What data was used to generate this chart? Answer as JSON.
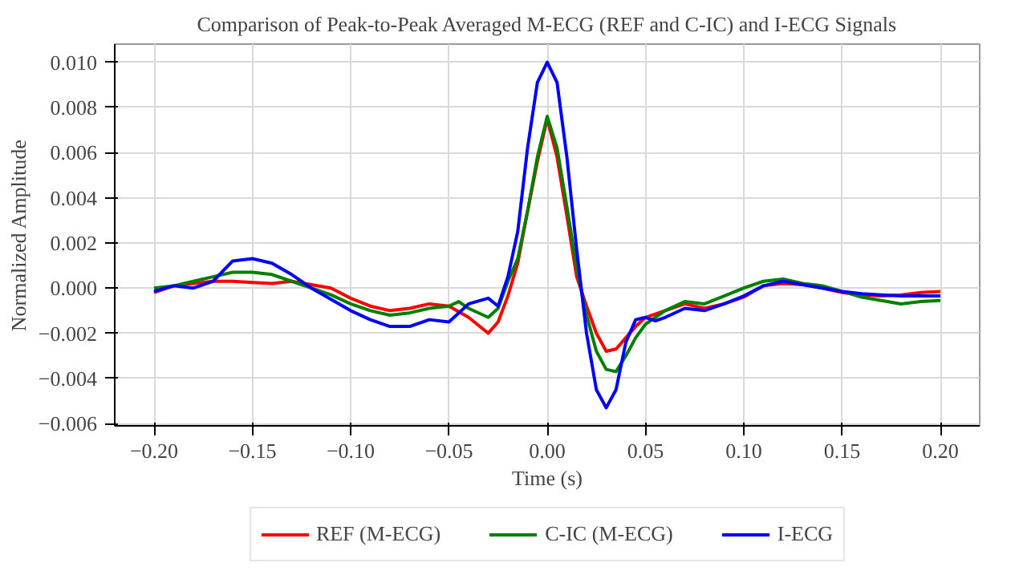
{
  "chart_data": {
    "type": "line",
    "title": "Comparison of Peak-to-Peak Averaged M-ECG (REF and C-IC) and I-ECG Signals",
    "xlabel": "Time (s)",
    "ylabel": "Normalized Amplitude",
    "xlim": [
      -0.22,
      0.22
    ],
    "ylim": [
      -0.0061,
      0.0108
    ],
    "xticks": [
      {
        "value": -0.2,
        "label": "−0.20"
      },
      {
        "value": -0.15,
        "label": "−0.15"
      },
      {
        "value": -0.1,
        "label": "−0.10"
      },
      {
        "value": -0.05,
        "label": "−0.05"
      },
      {
        "value": 0,
        "label": "0.00"
      },
      {
        "value": 0.05,
        "label": "0.05"
      },
      {
        "value": 0.1,
        "label": "0.10"
      },
      {
        "value": 0.15,
        "label": "0.15"
      },
      {
        "value": 0.2,
        "label": "0.20"
      }
    ],
    "yticks": [
      {
        "value": -0.006,
        "label": "−0.006"
      },
      {
        "value": -0.004,
        "label": "−0.004"
      },
      {
        "value": -0.002,
        "label": "−0.002"
      },
      {
        "value": 0,
        "label": "0.000"
      },
      {
        "value": 0.002,
        "label": "0.002"
      },
      {
        "value": 0.004,
        "label": "0.004"
      },
      {
        "value": 0.006,
        "label": "0.006"
      },
      {
        "value": 0.008,
        "label": "0.008"
      },
      {
        "value": 0.01,
        "label": "0.010"
      }
    ],
    "grid": true,
    "legend": "bottom",
    "line_style": "solid",
    "series": [
      {
        "name": "REF (M-ECG)",
        "color": "#ff0000",
        "x": [
          -0.2,
          -0.19,
          -0.18,
          -0.17,
          -0.16,
          -0.15,
          -0.14,
          -0.13,
          -0.12,
          -0.11,
          -0.1,
          -0.09,
          -0.08,
          -0.07,
          -0.06,
          -0.05,
          -0.04,
          -0.03,
          -0.025,
          -0.02,
          -0.015,
          -0.01,
          -0.005,
          0,
          0.005,
          0.01,
          0.015,
          0.02,
          0.025,
          0.03,
          0.035,
          0.04,
          0.045,
          0.05,
          0.06,
          0.07,
          0.08,
          0.09,
          0.1,
          0.11,
          0.12,
          0.13,
          0.14,
          0.15,
          0.16,
          0.17,
          0.18,
          0.19,
          0.2
        ],
        "values": [
          -0.0002,
          0.0001,
          0.0002,
          0.0003,
          0.0003,
          0.00025,
          0.0002,
          0.0003,
          0.00015,
          0,
          -0.00045,
          -0.0008,
          -0.001,
          -0.0009,
          -0.0007,
          -0.0008,
          -0.0013,
          -0.002,
          -0.0015,
          -0.00035,
          0.0011,
          0.0034,
          0.0056,
          0.0075,
          0.0058,
          0.0032,
          0.0005,
          -0.0008,
          -0.002,
          -0.0028,
          -0.0027,
          -0.0022,
          -0.0017,
          -0.0013,
          -0.001,
          -0.0007,
          -0.0009,
          -0.0007,
          -0.0004,
          0.0001,
          0.0002,
          0.00015,
          0,
          -0.0002,
          -0.0003,
          -0.00035,
          -0.0003,
          -0.0002,
          -0.00015
        ]
      },
      {
        "name": "C-IC (M-ECG)",
        "color": "#007f00",
        "x": [
          -0.2,
          -0.19,
          -0.18,
          -0.17,
          -0.16,
          -0.15,
          -0.14,
          -0.13,
          -0.12,
          -0.11,
          -0.1,
          -0.09,
          -0.08,
          -0.07,
          -0.06,
          -0.05,
          -0.045,
          -0.04,
          -0.03,
          -0.025,
          -0.02,
          -0.015,
          -0.01,
          -0.005,
          0,
          0.005,
          0.01,
          0.015,
          0.02,
          0.025,
          0.03,
          0.035,
          0.04,
          0.045,
          0.05,
          0.06,
          0.07,
          0.08,
          0.09,
          0.1,
          0.11,
          0.12,
          0.13,
          0.14,
          0.15,
          0.16,
          0.17,
          0.18,
          0.19,
          0.2
        ],
        "values": [
          0,
          0.0001,
          0.0003,
          0.0005,
          0.0007,
          0.0007,
          0.0006,
          0.0003,
          0,
          -0.0003,
          -0.0007,
          -0.001,
          -0.0012,
          -0.0011,
          -0.0009,
          -0.0008,
          -0.0006,
          -0.0009,
          -0.0013,
          -0.0009,
          0.0003,
          0.0013,
          0.0034,
          0.0058,
          0.0076,
          0.0062,
          0.0036,
          0.0009,
          -0.0012,
          -0.0028,
          -0.0036,
          -0.0037,
          -0.003,
          -0.0022,
          -0.0016,
          -0.001,
          -0.0006,
          -0.0007,
          -0.00035,
          0,
          0.0003,
          0.0004,
          0.0002,
          0.0001,
          -0.00015,
          -0.0004,
          -0.00055,
          -0.0007,
          -0.0006,
          -0.00055
        ]
      },
      {
        "name": "I-ECG",
        "color": "#0000ff",
        "x": [
          -0.2,
          -0.19,
          -0.18,
          -0.17,
          -0.16,
          -0.15,
          -0.14,
          -0.13,
          -0.12,
          -0.11,
          -0.1,
          -0.09,
          -0.08,
          -0.07,
          -0.06,
          -0.05,
          -0.04,
          -0.03,
          -0.025,
          -0.02,
          -0.015,
          -0.01,
          -0.005,
          0,
          0.005,
          0.01,
          0.015,
          0.02,
          0.025,
          0.03,
          0.035,
          0.04,
          0.045,
          0.05,
          0.055,
          0.06,
          0.07,
          0.08,
          0.09,
          0.1,
          0.11,
          0.12,
          0.13,
          0.14,
          0.15,
          0.16,
          0.17,
          0.18,
          0.2
        ],
        "values": [
          -0.00015,
          0.0001,
          0,
          0.0003,
          0.0012,
          0.0013,
          0.0011,
          0.0006,
          0,
          -0.0005,
          -0.001,
          -0.0014,
          -0.0017,
          -0.0017,
          -0.0014,
          -0.0015,
          -0.0007,
          -0.00045,
          -0.0008,
          0.0005,
          0.0025,
          0.0062,
          0.0091,
          0.01,
          0.0091,
          0.0058,
          0.0017,
          -0.002,
          -0.0045,
          -0.0053,
          -0.0045,
          -0.0024,
          -0.0014,
          -0.0013,
          -0.00145,
          -0.0013,
          -0.0009,
          -0.001,
          -0.0007,
          -0.00035,
          0.0001,
          0.0003,
          0.00015,
          0,
          -0.00015,
          -0.00025,
          -0.0003,
          -0.00035,
          -0.00035
        ]
      }
    ]
  }
}
